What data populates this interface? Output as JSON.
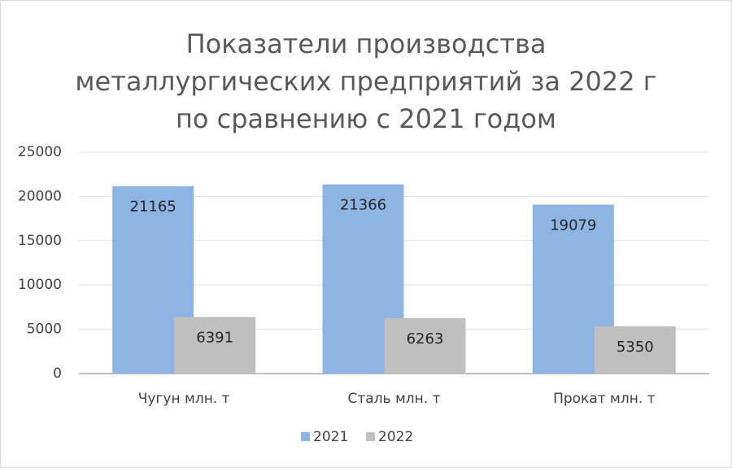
{
  "chart_data": {
    "type": "bar",
    "title": [
      "Показатели производства",
      "металлургических предприятий за 2022 г",
      "по сравнению с 2021 годом"
    ],
    "categories": [
      "Чугун млн. т",
      "Сталь млн. т",
      "Прокат млн. т"
    ],
    "series": [
      {
        "name": "2021",
        "color": "#8db4e2",
        "values": [
          21165,
          21366,
          19079
        ]
      },
      {
        "name": "2022",
        "color": "#bfbfbf",
        "values": [
          6391,
          6263,
          5350
        ]
      }
    ],
    "ylim": [
      0,
      25000
    ],
    "yticks": [
      0,
      5000,
      10000,
      15000,
      20000,
      25000
    ],
    "grid": true,
    "legend": "bottom"
  }
}
